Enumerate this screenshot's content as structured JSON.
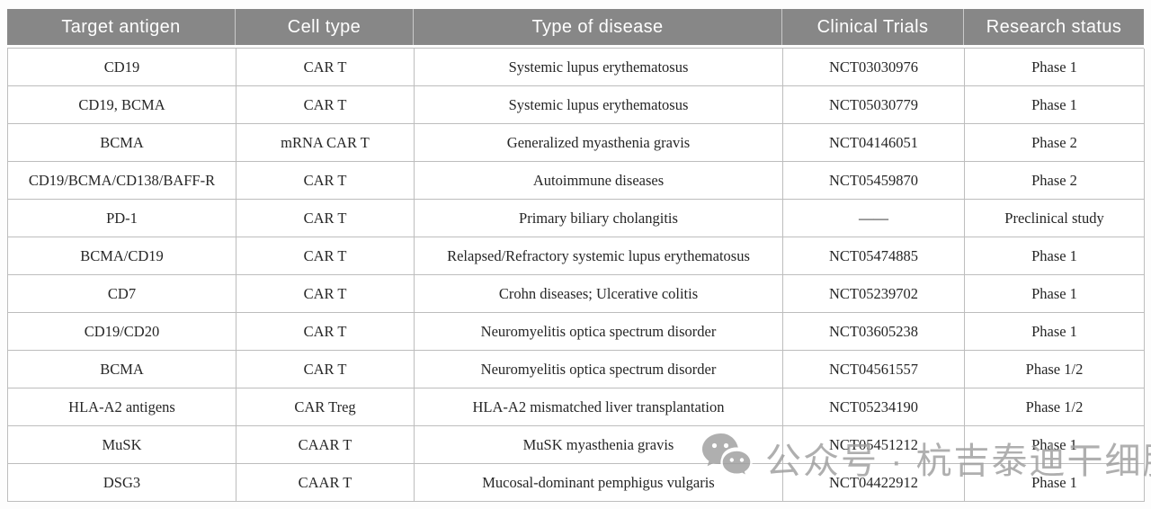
{
  "colors": {
    "header_bg": "#878787",
    "header_text": "#ffffff",
    "grid_border": "#bdbdbd",
    "body_text": "#262626",
    "watermark_gray": "#9e9e9e"
  },
  "table": {
    "headers": [
      "Target antigen",
      "Cell type",
      "Type of disease",
      "Clinical Trials",
      "Research status"
    ],
    "rows": [
      {
        "target_antigen": "CD19",
        "cell_type": "CAR T",
        "disease": "Systemic lupus erythematosus",
        "clinical_trial": "NCT03030976",
        "research_status": "Phase 1"
      },
      {
        "target_antigen": "CD19, BCMA",
        "cell_type": "CAR T",
        "disease": "Systemic lupus erythematosus",
        "clinical_trial": "NCT05030779",
        "research_status": "Phase 1"
      },
      {
        "target_antigen": "BCMA",
        "cell_type": "mRNA CAR T",
        "disease": "Generalized myasthenia gravis",
        "clinical_trial": "NCT04146051",
        "research_status": "Phase 2"
      },
      {
        "target_antigen": "CD19/BCMA/CD138/BAFF-R",
        "cell_type": "CAR T",
        "disease": "Autoimmune diseases",
        "clinical_trial": "NCT05459870",
        "research_status": "Phase 2"
      },
      {
        "target_antigen": "PD-1",
        "cell_type": "CAR T",
        "disease": "Primary biliary cholangitis",
        "clinical_trial": "——",
        "research_status": "Preclinical study"
      },
      {
        "target_antigen": "BCMA/CD19",
        "cell_type": "CAR T",
        "disease": "Relapsed/Refractory systemic lupus erythematosus",
        "clinical_trial": "NCT05474885",
        "research_status": "Phase 1"
      },
      {
        "target_antigen": "CD7",
        "cell_type": "CAR T",
        "disease": "Crohn diseases; Ulcerative colitis",
        "clinical_trial": "NCT05239702",
        "research_status": "Phase 1"
      },
      {
        "target_antigen": "CD19/CD20",
        "cell_type": "CAR T",
        "disease": "Neuromyelitis optica spectrum disorder",
        "clinical_trial": "NCT03605238",
        "research_status": "Phase 1"
      },
      {
        "target_antigen": "BCMA",
        "cell_type": "CAR T",
        "disease": "Neuromyelitis optica spectrum disorder",
        "clinical_trial": "NCT04561557",
        "research_status": "Phase 1/2"
      },
      {
        "target_antigen": "HLA-A2 antigens",
        "cell_type": "CAR Treg",
        "disease": "HLA-A2 mismatched liver transplantation",
        "clinical_trial": "NCT05234190",
        "research_status": "Phase 1/2"
      },
      {
        "target_antigen": "MuSK",
        "cell_type": "CAAR T",
        "disease": "MuSK myasthenia gravis",
        "clinical_trial": "NCT05451212",
        "research_status": "Phase 1"
      },
      {
        "target_antigen": "DSG3",
        "cell_type": "CAAR T",
        "disease": "Mucosal-dominant pemphigus vulgaris",
        "clinical_trial": "NCT04422912",
        "research_status": "Phase 1"
      }
    ]
  },
  "watermark": {
    "icon": "wechat-icon",
    "text": "公众号 · 杭吉泰迪干细胞"
  }
}
